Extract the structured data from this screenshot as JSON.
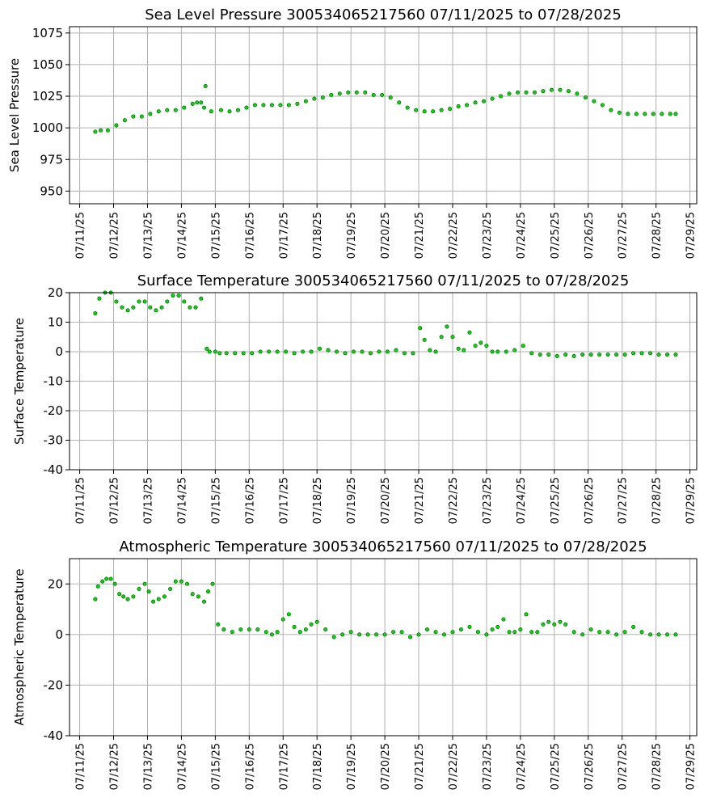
{
  "colors": {
    "marker_fill": "#00dd00",
    "marker_edge": "#0a4a0a",
    "grid": "#b0b0b0"
  },
  "chart_data": [
    {
      "type": "scatter",
      "title": "Sea Level Pressure 300534065217560  07/11/2025 to 07/28/2025",
      "ylabel": "Sea Level Pressure",
      "xlabel": "",
      "grid": true,
      "x_range_days": [
        -0.3,
        18.2
      ],
      "ylim": [
        940,
        1080
      ],
      "yticks": [
        950,
        975,
        1000,
        1025,
        1050,
        1075
      ],
      "xticks": [
        "07/11/25",
        "07/12/25",
        "07/13/25",
        "07/14/25",
        "07/15/25",
        "07/16/25",
        "07/17/25",
        "07/18/25",
        "07/19/25",
        "07/20/25",
        "07/21/25",
        "07/22/25",
        "07/23/25",
        "07/24/25",
        "07/25/25",
        "07/26/25",
        "07/27/25",
        "07/28/25",
        "07/29/25"
      ],
      "series": [
        {
          "x_dates": [
            "07/11 11:00",
            "07/11 15:00",
            "07/11 20:00",
            "07/12 02:00",
            "07/12 08:00",
            "07/12 14:00",
            "07/12 20:00",
            "07/13 02:00",
            "07/13 08:00",
            "07/13 14:00",
            "07/13 20:00",
            "07/14 02:00",
            "07/14 08:00",
            "07/14 11:00",
            "07/14 14:00",
            "07/14 16:00",
            "07/14 17:00",
            "07/14 21:00",
            "07/15 04:00",
            "07/15 10:00",
            "07/15 16:00",
            "07/15 22:00",
            "07/16 04:00",
            "07/16 10:00",
            "07/16 16:00",
            "07/16 22:00",
            "07/17 04:00",
            "07/17 10:00",
            "07/17 16:00",
            "07/17 22:00",
            "07/18 04:00",
            "07/18 10:00",
            "07/18 16:00",
            "07/18 22:00",
            "07/19 04:00",
            "07/19 10:00",
            "07/19 16:00",
            "07/19 22:00",
            "07/20 04:00",
            "07/20 10:00",
            "07/20 16:00",
            "07/20 22:00",
            "07/21 04:00",
            "07/21 10:00",
            "07/21 16:00",
            "07/21 22:00",
            "07/22 04:00",
            "07/22 10:00",
            "07/22 16:00",
            "07/22 22:00",
            "07/23 04:00",
            "07/23 10:00",
            "07/23 16:00",
            "07/23 22:00",
            "07/24 04:00",
            "07/24 10:00",
            "07/24 16:00",
            "07/24 22:00",
            "07/25 04:00",
            "07/25 10:00",
            "07/25 16:00",
            "07/25 22:00",
            "07/26 04:00",
            "07/26 10:00",
            "07/26 16:00",
            "07/26 22:00",
            "07/27 04:00",
            "07/27 10:00",
            "07/27 16:00",
            "07/27 22:00",
            "07/28 04:00",
            "07/28 10:00",
            "07/28 14:00"
          ],
          "x": [
            0.46,
            0.62,
            0.83,
            1.08,
            1.33,
            1.58,
            1.83,
            2.08,
            2.33,
            2.58,
            2.83,
            3.08,
            3.33,
            3.46,
            3.58,
            3.67,
            3.71,
            3.88,
            4.17,
            4.42,
            4.67,
            4.92,
            5.17,
            5.42,
            5.67,
            5.92,
            6.17,
            6.42,
            6.67,
            6.92,
            7.17,
            7.42,
            7.67,
            7.92,
            8.17,
            8.42,
            8.67,
            8.92,
            9.17,
            9.42,
            9.67,
            9.92,
            10.17,
            10.42,
            10.67,
            10.92,
            11.17,
            11.42,
            11.67,
            11.92,
            12.17,
            12.42,
            12.67,
            12.92,
            13.17,
            13.42,
            13.67,
            13.92,
            14.17,
            14.42,
            14.67,
            14.92,
            15.17,
            15.42,
            15.67,
            15.92,
            16.17,
            16.42,
            16.67,
            16.92,
            17.17,
            17.42,
            17.58
          ],
          "y": [
            997,
            998,
            998,
            1002,
            1006,
            1009,
            1009,
            1011,
            1013,
            1014,
            1014,
            1016,
            1019,
            1020,
            1020,
            1016,
            1033,
            1013,
            1014,
            1013,
            1014,
            1016,
            1018,
            1018,
            1018,
            1018,
            1018,
            1019,
            1021,
            1023,
            1024,
            1026,
            1027,
            1028,
            1028,
            1028,
            1026,
            1026,
            1024,
            1020,
            1016,
            1014,
            1013,
            1013,
            1014,
            1015,
            1017,
            1018,
            1020,
            1021,
            1023,
            1025,
            1027,
            1028,
            1028,
            1028,
            1029,
            1030,
            1030,
            1029,
            1027,
            1024,
            1021,
            1018,
            1014,
            1012,
            1011,
            1011,
            1011,
            1011,
            1011,
            1011,
            1011
          ]
        }
      ]
    },
    {
      "type": "scatter",
      "title": "Surface Temperature 300534065217560  07/11/2025 to 07/28/2025",
      "ylabel": "Surface Temperature",
      "xlabel": "",
      "grid": true,
      "x_range_days": [
        -0.3,
        18.2
      ],
      "ylim": [
        -40,
        20
      ],
      "yticks": [
        -40,
        -30,
        -20,
        -10,
        0,
        10,
        20
      ],
      "xticks": [
        "07/11/25",
        "07/12/25",
        "07/13/25",
        "07/14/25",
        "07/15/25",
        "07/16/25",
        "07/17/25",
        "07/18/25",
        "07/19/25",
        "07/20/25",
        "07/21/25",
        "07/22/25",
        "07/23/25",
        "07/24/25",
        "07/25/25",
        "07/26/25",
        "07/27/25",
        "07/28/25",
        "07/29/25"
      ],
      "series": [
        {
          "x_dates": [
            "07/11 11:00",
            "07/11 14:00",
            "07/11 18:00",
            "07/11 22:00",
            "07/12 02:00",
            "07/12 06:00",
            "07/12 10:00",
            "07/12 14:00",
            "07/12 18:00",
            "07/12 22:00",
            "07/13 02:00",
            "07/13 06:00",
            "07/13 10:00",
            "07/13 14:00",
            "07/13 18:00",
            "07/13 22:00",
            "07/14 02:00",
            "07/14 06:00",
            "07/14 10:00",
            "07/14 14:00",
            "07/14 18:00",
            "07/14 20:00",
            "07/15 00:00",
            "07/15 03:00",
            "07/15 08:00",
            "07/15 14:00",
            "07/15 20:00",
            "07/16 02:00",
            "07/16 08:00",
            "07/16 14:00",
            "07/16 20:00",
            "07/17 02:00",
            "07/17 08:00",
            "07/17 14:00",
            "07/17 20:00",
            "07/18 02:00",
            "07/18 08:00",
            "07/18 14:00",
            "07/18 20:00",
            "07/19 02:00",
            "07/19 08:00",
            "07/19 14:00",
            "07/19 20:00",
            "07/20 02:00",
            "07/20 08:00",
            "07/20 14:00",
            "07/20 20:00",
            "07/21 01:00",
            "07/21 04:00",
            "07/21 08:00",
            "07/21 12:00",
            "07/21 16:00",
            "07/21 20:00",
            "07/22 00:00",
            "07/22 04:00",
            "07/22 08:00",
            "07/22 12:00",
            "07/22 16:00",
            "07/22 20:00",
            "07/23 00:00",
            "07/23 04:00",
            "07/23 08:00",
            "07/23 14:00",
            "07/23 20:00",
            "07/24 02:00",
            "07/24 08:00",
            "07/24 14:00",
            "07/24 20:00",
            "07/25 02:00",
            "07/25 08:00",
            "07/25 14:00",
            "07/25 20:00",
            "07/26 02:00",
            "07/26 08:00",
            "07/26 14:00",
            "07/26 20:00",
            "07/27 02:00",
            "07/27 08:00",
            "07/27 14:00",
            "07/27 20:00",
            "07/28 02:00",
            "07/28 08:00",
            "07/28 14:00"
          ],
          "x": [
            0.46,
            0.58,
            0.75,
            0.92,
            1.08,
            1.25,
            1.42,
            1.58,
            1.75,
            1.92,
            2.08,
            2.25,
            2.42,
            2.58,
            2.75,
            2.92,
            3.08,
            3.25,
            3.42,
            3.58,
            3.75,
            3.83,
            4.0,
            4.13,
            4.33,
            4.58,
            4.83,
            5.08,
            5.33,
            5.58,
            5.83,
            6.08,
            6.33,
            6.58,
            6.83,
            7.08,
            7.33,
            7.58,
            7.83,
            8.08,
            8.33,
            8.58,
            8.83,
            9.08,
            9.33,
            9.58,
            9.83,
            10.04,
            10.17,
            10.33,
            10.5,
            10.67,
            10.83,
            11.0,
            11.17,
            11.33,
            11.5,
            11.67,
            11.83,
            12.0,
            12.17,
            12.33,
            12.58,
            12.83,
            13.08,
            13.33,
            13.58,
            13.83,
            14.08,
            14.33,
            14.58,
            14.83,
            15.08,
            15.33,
            15.58,
            15.83,
            16.08,
            16.33,
            16.58,
            16.83,
            17.08,
            17.33,
            17.58
          ],
          "y": [
            13,
            18,
            20,
            20,
            17,
            15,
            14,
            15,
            17,
            17,
            15,
            14,
            15,
            17,
            19,
            19,
            17,
            15,
            15,
            18,
            1,
            0,
            0,
            -0.5,
            -0.5,
            -0.5,
            -0.5,
            -0.5,
            0,
            0,
            0,
            0,
            -0.5,
            0,
            0,
            1,
            0.5,
            0,
            -0.5,
            0,
            0,
            -0.5,
            0,
            0,
            0.5,
            -0.5,
            -0.5,
            8,
            4,
            0.5,
            0,
            5,
            8.5,
            5,
            1,
            0.5,
            6.5,
            2,
            3,
            2,
            0,
            0,
            0,
            0.5,
            2,
            -0.5,
            -1,
            -1,
            -1.5,
            -1,
            -1.5,
            -1,
            -1,
            -1,
            -1,
            -1,
            -1,
            -0.5,
            -0.5,
            -0.5,
            -1,
            -1,
            -1
          ]
        }
      ]
    },
    {
      "type": "scatter",
      "title": "Atmospheric Temperature 300534065217560  07/11/2025 to 07/28/2025",
      "ylabel": "Atmospheric Temperature",
      "xlabel": "",
      "grid": true,
      "x_range_days": [
        -0.3,
        18.2
      ],
      "ylim": [
        -40,
        30
      ],
      "yticks": [
        -40,
        -20,
        0,
        20
      ],
      "xticks": [
        "07/11/25",
        "07/12/25",
        "07/13/25",
        "07/14/25",
        "07/15/25",
        "07/16/25",
        "07/17/25",
        "07/18/25",
        "07/19/25",
        "07/20/25",
        "07/21/25",
        "07/22/25",
        "07/23/25",
        "07/24/25",
        "07/25/25",
        "07/26/25",
        "07/27/25",
        "07/28/25",
        "07/29/25"
      ],
      "series": [
        {
          "x_dates": [
            "07/11 11:00",
            "07/11 13:00",
            "07/11 16:00",
            "07/11 19:00",
            "07/11 22:00",
            "07/12 01:00",
            "07/12 04:00",
            "07/12 07:00",
            "07/12 10:00",
            "07/12 14:00",
            "07/12 18:00",
            "07/12 22:00",
            "07/13 01:00",
            "07/13 04:00",
            "07/13 08:00",
            "07/13 12:00",
            "07/13 16:00",
            "07/13 20:00",
            "07/14 00:00",
            "07/14 04:00",
            "07/14 08:00",
            "07/14 12:00",
            "07/14 16:00",
            "07/14 19:00",
            "07/14 22:00",
            "07/15 02:00",
            "07/15 06:00",
            "07/15 12:00",
            "07/15 18:00",
            "07/16 00:00",
            "07/16 06:00",
            "07/16 12:00",
            "07/16 16:00",
            "07/16 20:00",
            "07/17 00:00",
            "07/17 04:00",
            "07/17 08:00",
            "07/17 12:00",
            "07/17 16:00",
            "07/17 20:00",
            "07/18 00:00",
            "07/18 06:00",
            "07/18 12:00",
            "07/18 18:00",
            "07/19 00:00",
            "07/19 06:00",
            "07/19 12:00",
            "07/19 18:00",
            "07/20 00:00",
            "07/20 06:00",
            "07/20 12:00",
            "07/20 18:00",
            "07/21 00:00",
            "07/21 06:00",
            "07/21 12:00",
            "07/21 18:00",
            "07/22 00:00",
            "07/22 06:00",
            "07/22 12:00",
            "07/22 18:00",
            "07/23 00:00",
            "07/23 04:00",
            "07/23 08:00",
            "07/23 12:00",
            "07/23 16:00",
            "07/23 20:00",
            "07/24 00:00",
            "07/24 04:00",
            "07/24 08:00",
            "07/24 12:00",
            "07/24 16:00",
            "07/24 20:00",
            "07/25 00:00",
            "07/25 04:00",
            "07/25 08:00",
            "07/25 14:00",
            "07/25 20:00",
            "07/26 02:00",
            "07/26 08:00",
            "07/26 14:00",
            "07/26 20:00",
            "07/27 02:00",
            "07/27 08:00",
            "07/27 14:00",
            "07/27 20:00",
            "07/28 02:00",
            "07/28 08:00",
            "07/28 14:00"
          ],
          "x": [
            0.46,
            0.54,
            0.67,
            0.79,
            0.92,
            1.04,
            1.17,
            1.29,
            1.42,
            1.58,
            1.75,
            1.92,
            2.04,
            2.17,
            2.33,
            2.5,
            2.67,
            2.83,
            3.0,
            3.17,
            3.33,
            3.5,
            3.67,
            3.79,
            3.92,
            4.08,
            4.25,
            4.5,
            4.75,
            5.0,
            5.25,
            5.5,
            5.67,
            5.83,
            6.0,
            6.17,
            6.33,
            6.5,
            6.67,
            6.83,
            7.0,
            7.25,
            7.5,
            7.75,
            8.0,
            8.25,
            8.5,
            8.75,
            9.0,
            9.25,
            9.5,
            9.75,
            10.0,
            10.25,
            10.5,
            10.75,
            11.0,
            11.25,
            11.5,
            11.75,
            12.0,
            12.17,
            12.33,
            12.5,
            12.67,
            12.83,
            13.0,
            13.17,
            13.33,
            13.5,
            13.67,
            13.83,
            14.0,
            14.17,
            14.33,
            14.58,
            14.83,
            15.08,
            15.33,
            15.58,
            15.83,
            16.08,
            16.33,
            16.58,
            16.83,
            17.08,
            17.33,
            17.58
          ],
          "y": [
            14,
            19,
            21,
            22,
            22,
            20,
            16,
            15,
            14,
            15,
            18,
            20,
            17,
            13,
            14,
            15,
            18,
            21,
            21,
            20,
            16,
            15,
            13,
            17,
            20,
            4,
            2,
            1,
            2,
            2,
            2,
            1,
            0,
            1,
            6,
            8,
            3,
            1,
            2,
            4,
            5,
            2,
            -1,
            0,
            1,
            0,
            0,
            0,
            0,
            1,
            1,
            -1,
            0,
            2,
            1,
            0,
            1,
            2,
            3,
            1,
            0,
            2,
            3,
            6,
            1,
            1,
            2,
            8,
            1,
            1,
            4,
            5,
            4,
            5,
            4,
            1,
            0,
            2,
            1,
            1,
            0,
            1,
            3,
            1,
            0,
            0,
            0,
            0
          ]
        }
      ]
    }
  ]
}
